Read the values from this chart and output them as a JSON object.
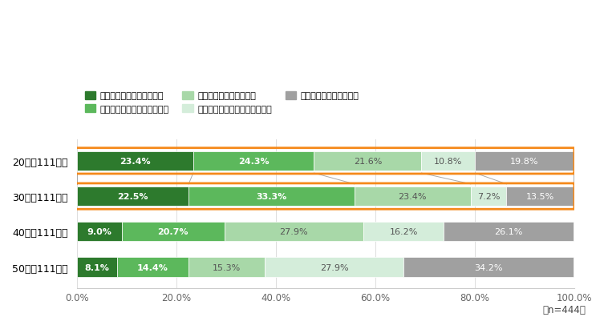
{
  "categories": [
    "20代（111人）",
    "30代（111人）",
    "40代（111人）",
    "50代（111人）"
  ],
  "series": [
    {
      "label": "いつも倍速で視聴している",
      "color": "#2d7a2d",
      "values": [
        23.4,
        22.5,
        9.0,
        8.1
      ]
    },
    {
      "label": "だいたい倍速で視聴している",
      "color": "#5cb85c",
      "values": [
        24.3,
        33.3,
        20.7,
        14.4
      ]
    },
    {
      "label": "時々倍速で視聴している",
      "color": "#a8d8a8",
      "values": [
        21.6,
        23.4,
        27.9,
        15.3
      ]
    },
    {
      "label": "ごくまれに倍速で視聴している",
      "color": "#d4edda",
      "values": [
        10.8,
        7.2,
        16.2,
        27.9
      ]
    },
    {
      "label": "まったく使用していない",
      "color": "#a0a0a0",
      "values": [
        19.8,
        13.5,
        26.1,
        34.2
      ]
    }
  ],
  "highlight_rows": [
    0,
    1
  ],
  "highlight_color": "#f5891a",
  "xlim": [
    0,
    100
  ],
  "xticks": [
    0,
    20,
    40,
    60,
    80,
    100
  ],
  "xticklabels": [
    "0.0%",
    "20.0%",
    "40.0%",
    "60.0%",
    "80.0%",
    "100.0%"
  ],
  "footnote": "（n=444）",
  "bg_color": "#ffffff",
  "bar_height": 0.55,
  "connector_line_color": "#aaaaaa"
}
